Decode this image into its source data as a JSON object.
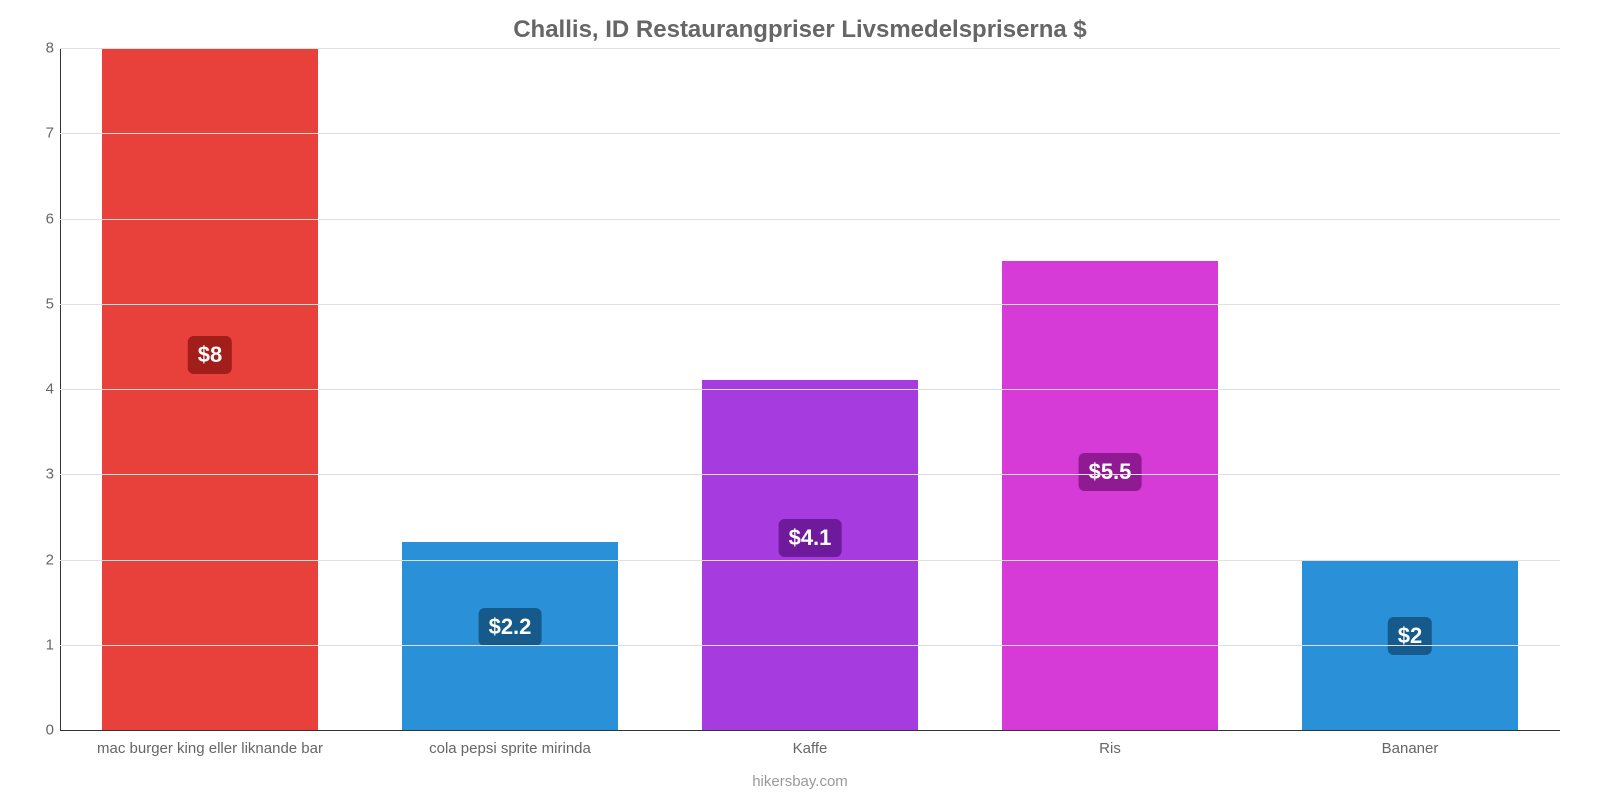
{
  "chart": {
    "type": "bar",
    "title": "Challis, ID Restaurangpriser Livsmedelspriserna $",
    "title_color": "#666666",
    "title_fontsize": 24,
    "footer": "hikersbay.com",
    "footer_color": "#999999",
    "footer_fontsize": 15,
    "background_color": "#ffffff",
    "grid_color": "#e0e0e0",
    "axis_color": "#333333",
    "ylim": [
      0,
      8
    ],
    "yticks": [
      0,
      1,
      2,
      3,
      4,
      5,
      6,
      7,
      8
    ],
    "tick_fontsize": 15,
    "tick_color": "#666666",
    "bar_width_ratio": 0.72,
    "categories": [
      "mac burger king eller liknande bar",
      "cola pepsi sprite mirinda",
      "Kaffe",
      "Ris",
      "Bananer"
    ],
    "values": [
      8,
      2.2,
      4.1,
      5.5,
      2
    ],
    "value_labels": [
      "$8",
      "$2.2",
      "$4.1",
      "$5.5",
      "$2"
    ],
    "bar_colors": [
      "#e8403b",
      "#2a91d8",
      "#a63be0",
      "#d63bd8",
      "#2a91d8"
    ],
    "label_bg_colors": [
      "#a11e1a",
      "#155a8a",
      "#6f1a9c",
      "#8f1a91",
      "#155a8a"
    ],
    "label_fontsize": 22,
    "label_position_pct": 55,
    "xlabel_fontsize": 15,
    "xlabel_color": "#666666"
  }
}
